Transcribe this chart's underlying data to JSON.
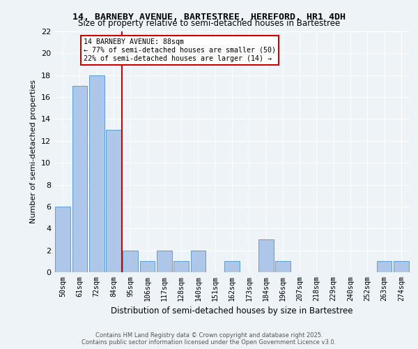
{
  "title1": "14, BARNEBY AVENUE, BARTESTREE, HEREFORD, HR1 4DH",
  "title2": "Size of property relative to semi-detached houses in Bartestree",
  "xlabel": "Distribution of semi-detached houses by size in Bartestree",
  "ylabel": "Number of semi-detached properties",
  "categories": [
    "50sqm",
    "61sqm",
    "72sqm",
    "84sqm",
    "95sqm",
    "106sqm",
    "117sqm",
    "128sqm",
    "140sqm",
    "151sqm",
    "162sqm",
    "173sqm",
    "184sqm",
    "196sqm",
    "207sqm",
    "218sqm",
    "229sqm",
    "240sqm",
    "252sqm",
    "263sqm",
    "274sqm"
  ],
  "values": [
    6,
    17,
    18,
    13,
    2,
    1,
    2,
    1,
    2,
    0,
    1,
    0,
    3,
    1,
    0,
    0,
    0,
    0,
    0,
    1,
    1
  ],
  "bar_color": "#aec6e8",
  "bar_edge_color": "#5a9fd4",
  "vline_x": 3.5,
  "vline_color": "#cc0000",
  "annotation_title": "14 BARNEBY AVENUE: 88sqm",
  "annotation_line1": "← 77% of semi-detached houses are smaller (50)",
  "annotation_line2": "22% of semi-detached houses are larger (14) →",
  "ylim": [
    0,
    22
  ],
  "yticks": [
    0,
    2,
    4,
    6,
    8,
    10,
    12,
    14,
    16,
    18,
    20,
    22
  ],
  "footer": "Contains HM Land Registry data © Crown copyright and database right 2025.\nContains public sector information licensed under the Open Government Licence v3.0.",
  "bg_color": "#eef3f8",
  "plot_bg_color": "#eef3f8"
}
